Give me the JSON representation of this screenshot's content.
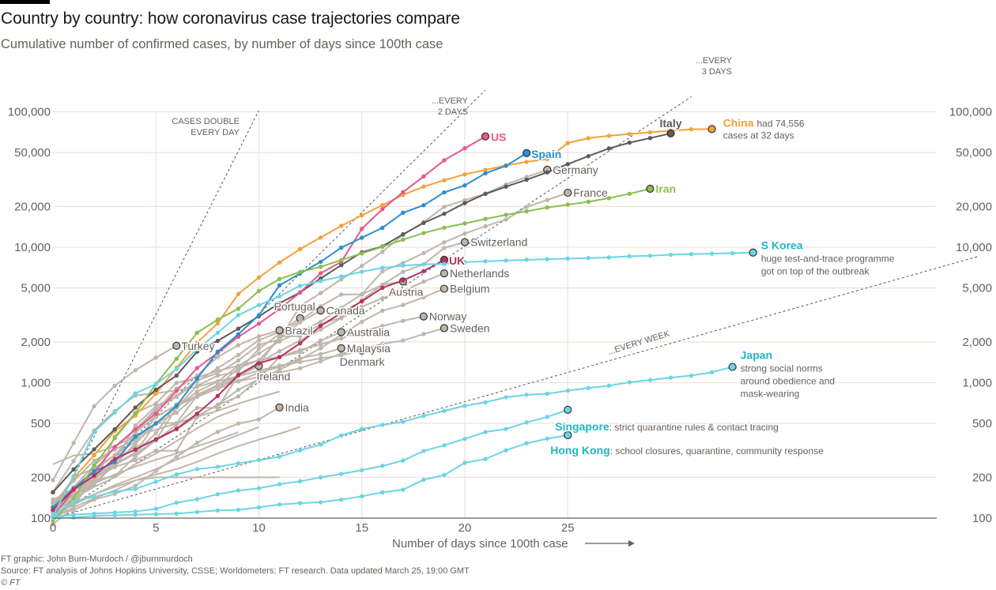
{
  "header": {
    "title": "Country by country: how coronavirus case trajectories compare",
    "subtitle": "Cumulative number of confirmed cases, by number of days since 100th case"
  },
  "footer": {
    "credit": "FT graphic: John Burn-Murdoch / @jburnmurdoch",
    "source": "Source: FT analysis of Johns Hopkins University, CSSE; Worldometers; FT research. Data updated March 25, 19:00 GMT",
    "copyright": "© FT"
  },
  "colors": {
    "China": "#f2a23a",
    "Italy": "#5e5a57",
    "US": "#e8588a",
    "Spain": "#2a8fd0",
    "Iran": "#8cbe4f",
    "UK": "#b5325f",
    "Asia": "#6cd5e3",
    "other": "#bfb6ac",
    "grid": "#ede3da",
    "guide": "#555"
  },
  "chart_data": {
    "type": "line",
    "title": "Country by country: how coronavirus case trajectories compare",
    "subtitle": "Cumulative number of confirmed cases, by number of days since 100th case",
    "xlabel": "Number of days since 100th case",
    "ylabel": "",
    "xlim": [
      0,
      43
    ],
    "ylim": [
      100,
      100000
    ],
    "yscale": "log",
    "x_ticks": [
      0,
      5,
      10,
      15,
      20,
      25
    ],
    "y_ticks": [
      100,
      200,
      500,
      1000,
      2000,
      5000,
      10000,
      20000,
      50000,
      100000
    ],
    "y_tick_labels": [
      "100",
      "200",
      "500",
      "1,000",
      "2,000",
      "5,000",
      "10,000",
      "20,000",
      "50,000",
      "100,000"
    ],
    "grid": true,
    "guides": [
      {
        "label": "CASES DOUBLE EVERY DAY",
        "doubling_days": 1
      },
      {
        "label": "...EVERY 2 DAYS",
        "doubling_days": 2
      },
      {
        "label": "...EVERY 3 DAYS",
        "doubling_days": 3
      },
      {
        "label": "...EVERY WEEK",
        "doubling_days": 7
      }
    ],
    "series": [
      {
        "name": "China",
        "group": "China",
        "label": "China",
        "note": "had 74,556",
        "note2": "cases at 32 days",
        "values": [
          114,
          198,
          291,
          440,
          571,
          830,
          1287,
          1975,
          2744,
          4515,
          5974,
          7711,
          9692,
          11791,
          14380,
          17205,
          20440,
          24324,
          28018,
          31161,
          34546,
          37198,
          40171,
          42638,
          44653,
          58761,
          63851,
          66492,
          68500,
          70548,
          72436,
          74185,
          74556
        ]
      },
      {
        "name": "Italy",
        "group": "Italy",
        "label": "Italy",
        "values": [
          155,
          229,
          322,
          453,
          655,
          888,
          1128,
          1694,
          2036,
          2502,
          3089,
          3858,
          4636,
          5883,
          7375,
          9172,
          10149,
          12462,
          15113,
          17660,
          21157,
          24747,
          27980,
          31506,
          35713,
          41035,
          47021,
          53578,
          59138,
          63927,
          69176
        ]
      },
      {
        "name": "US",
        "group": "US",
        "label": "US",
        "values": [
          103,
          161,
          219,
          336,
          452,
          590,
          870,
          1281,
          1663,
          2179,
          2726,
          3499,
          4632,
          6421,
          7783,
          13677,
          19100,
          25489,
          33276,
          43847,
          53740,
          65778
        ]
      },
      {
        "name": "Spain",
        "group": "Spain",
        "label": "Spain",
        "values": [
          120,
          165,
          222,
          259,
          400,
          500,
          673,
          1073,
          1695,
          2277,
          3146,
          5232,
          6391,
          7798,
          9942,
          11748,
          13910,
          17963,
          20410,
          25374,
          28603,
          35136,
          39885,
          49515
        ]
      },
      {
        "name": "Iran",
        "group": "Iran",
        "label": "Iran",
        "values": [
          95,
          139,
          245,
          388,
          593,
          978,
          1501,
          2336,
          2922,
          3513,
          4747,
          5823,
          6566,
          7161,
          8042,
          9000,
          10075,
          11364,
          12729,
          13938,
          14991,
          16169,
          17361,
          18407,
          19644,
          20610,
          21638,
          23049,
          24811,
          27017
        ]
      },
      {
        "name": "UK",
        "group": "UK",
        "label": "UK",
        "values": [
          115,
          163,
          206,
          273,
          321,
          382,
          456,
          590,
          798,
          1140,
          1391,
          1543,
          1950,
          2626,
          3269,
          3983,
          5018,
          5683,
          6650,
          8077
        ]
      },
      {
        "name": "S Korea",
        "group": "Asia",
        "label": "S Korea",
        "note": "huge test-and-trace programme",
        "note2": "got on top of the outbreak",
        "values": [
          104,
          204,
          433,
          602,
          833,
          977,
          1261,
          1766,
          2337,
          3150,
          3736,
          4335,
          5186,
          5621,
          6088,
          6593,
          7041,
          7314,
          7478,
          7513,
          7755,
          7869,
          7979,
          8086,
          8162,
          8236,
          8320,
          8413,
          8565,
          8652,
          8799,
          8897,
          8961,
          9037,
          9137
        ]
      },
      {
        "name": "Japan",
        "group": "Asia",
        "label": "Japan",
        "note": "strong social norms",
        "note2": "around obedience and",
        "note3": "mask-wearing",
        "values": [
          105,
          132,
          144,
          157,
          164,
          186,
          210,
          230,
          239,
          254,
          268,
          284,
          317,
          349,
          408,
          455,
          488,
          514,
          568,
          619,
          675,
          716,
          780,
          814,
          829,
          873,
          914,
          950,
          1007,
          1046,
          1089,
          1128,
          1193,
          1307
        ]
      },
      {
        "name": "Singapore",
        "group": "Asia",
        "label": "Singapore",
        "note": ": strict quarantine rules & contact tracing",
        "values": [
          102,
          106,
          108,
          110,
          112,
          117,
          130,
          138,
          150,
          160,
          166,
          178,
          187,
          200,
          212,
          226,
          243,
          266,
          313,
          345,
          385,
          432,
          455,
          509,
          558,
          631
        ]
      },
      {
        "name": "Hong Kong",
        "group": "Asia",
        "label": "Hong Kong",
        "note": ": school closures, quarantine, community response",
        "values": [
          100,
          101,
          104,
          105,
          106,
          107,
          108,
          111,
          114,
          115,
          120,
          126,
          129,
          131,
          137,
          145,
          155,
          162,
          192,
          208,
          256,
          273,
          317,
          357,
          386,
          410
        ]
      },
      {
        "name": "Germany",
        "group": "other",
        "label": "Germany",
        "values": [
          130,
          159,
          196,
          262,
          482,
          670,
          799,
          1040,
          1176,
          1457,
          1908,
          2078,
          3675,
          4585,
          5795,
          7272,
          9257,
          12327,
          15320,
          19848,
          22213,
          24873,
          29056,
          32986,
          37323
        ]
      },
      {
        "name": "France",
        "group": "other",
        "label": "France",
        "values": [
          100,
          130,
          191,
          204,
          285,
          377,
          653,
          949,
          1126,
          1209,
          1784,
          2281,
          2876,
          3661,
          4469,
          4499,
          6633,
          7652,
          9043,
          10871,
          12612,
          14282,
          16018,
          19856,
          22304,
          25233
        ]
      },
      {
        "name": "Switzerland",
        "group": "other",
        "label": "Switzerland",
        "values": [
          90,
          120,
          214,
          268,
          337,
          374,
          491,
          652,
          652,
          1139,
          1359,
          2200,
          2200,
          2700,
          3028,
          4075,
          5294,
          6575,
          7474,
          9877,
          10897
        ]
      },
      {
        "name": "Netherlands",
        "group": "other",
        "label": "Netherlands",
        "values": [
          128,
          188,
          265,
          321,
          382,
          503,
          503,
          804,
          959,
          1135,
          1413,
          1705,
          2051,
          2460,
          2994,
          3631,
          4204,
          4749,
          5560,
          6412
        ]
      },
      {
        "name": "Belgium",
        "group": "other",
        "label": "Belgium",
        "values": [
          109,
          169,
          200,
          239,
          267,
          314,
          314,
          559,
          689,
          886,
          1058,
          1243,
          1486,
          1795,
          2257,
          2815,
          3401,
          3743,
          4269,
          4937
        ]
      },
      {
        "name": "Austria",
        "group": "other",
        "label": "Austria",
        "values": [
          104,
          131,
          182,
          246,
          302,
          504,
          655,
          860,
          1018,
          1332,
          1646,
          2013,
          2388,
          2814,
          3582,
          4474,
          5283,
          5588
        ]
      },
      {
        "name": "Norway",
        "group": "other",
        "label": "Norway",
        "values": [
          113,
          147,
          176,
          400,
          598,
          702,
          996,
          1090,
          1221,
          1333,
          1463,
          1550,
          1746,
          1914,
          2118,
          2385,
          2621,
          2863,
          3084
        ]
      },
      {
        "name": "Sweden",
        "group": "other",
        "label": "Sweden",
        "values": [
          137,
          161,
          203,
          248,
          355,
          500,
          599,
          814,
          961,
          1022,
          1103,
          1190,
          1279,
          1439,
          1639,
          1763,
          1934,
          2046,
          2286,
          2526
        ]
      },
      {
        "name": "Portugal",
        "group": "other",
        "label": "Portugal",
        "values": [
          112,
          169,
          245,
          331,
          448,
          642,
          785,
          1020,
          1280,
          1600,
          2060,
          2362,
          2995
        ]
      },
      {
        "name": "Brazil",
        "group": "other",
        "label": "Brazil",
        "values": [
          121,
          200,
          234,
          291,
          428,
          621,
          904,
          1128,
          1546,
          1891,
          2201,
          2433
        ]
      },
      {
        "name": "Canada",
        "group": "other",
        "label": "Canada",
        "values": [
          103,
          138,
          176,
          252,
          304,
          424,
          690,
          800,
          943,
          1277,
          1469,
          2091,
          2792,
          3409
        ]
      },
      {
        "name": "Australia",
        "group": "other",
        "label": "Australia",
        "values": [
          112,
          140,
          197,
          250,
          297,
          377,
          452,
          568,
          681,
          791,
          1071,
          1549,
          1682,
          2044,
          2364
        ]
      },
      {
        "name": "Malaysia",
        "group": "other",
        "label": "Malaysia",
        "values": [
          129,
          149,
          197,
          238,
          428,
          566,
          673,
          790,
          900,
          1030,
          1183,
          1306,
          1518,
          1624,
          1796
        ]
      },
      {
        "name": "Denmark",
        "group": "other",
        "label": "Denmark",
        "values": [
          156,
          264,
          444,
          617,
          804,
          836,
          875,
          933,
          1025,
          1116,
          1225,
          1337,
          1420,
          1514,
          1591,
          1724
        ]
      },
      {
        "name": "Turkey",
        "group": "other",
        "label": "Turkey",
        "values": [
          191,
          359,
          670,
          947,
          1236,
          1529,
          1872
        ]
      },
      {
        "name": "Ireland",
        "group": "other",
        "label": "Ireland",
        "values": [
          129,
          169,
          223,
          292,
          366,
          557,
          683,
          785,
          906,
          1125,
          1329
        ]
      },
      {
        "name": "India",
        "group": "other",
        "label": "India",
        "values": [
          107,
          114,
          137,
          151,
          173,
          223,
          283,
          360,
          434,
          499,
          536,
          657
        ]
      }
    ]
  }
}
